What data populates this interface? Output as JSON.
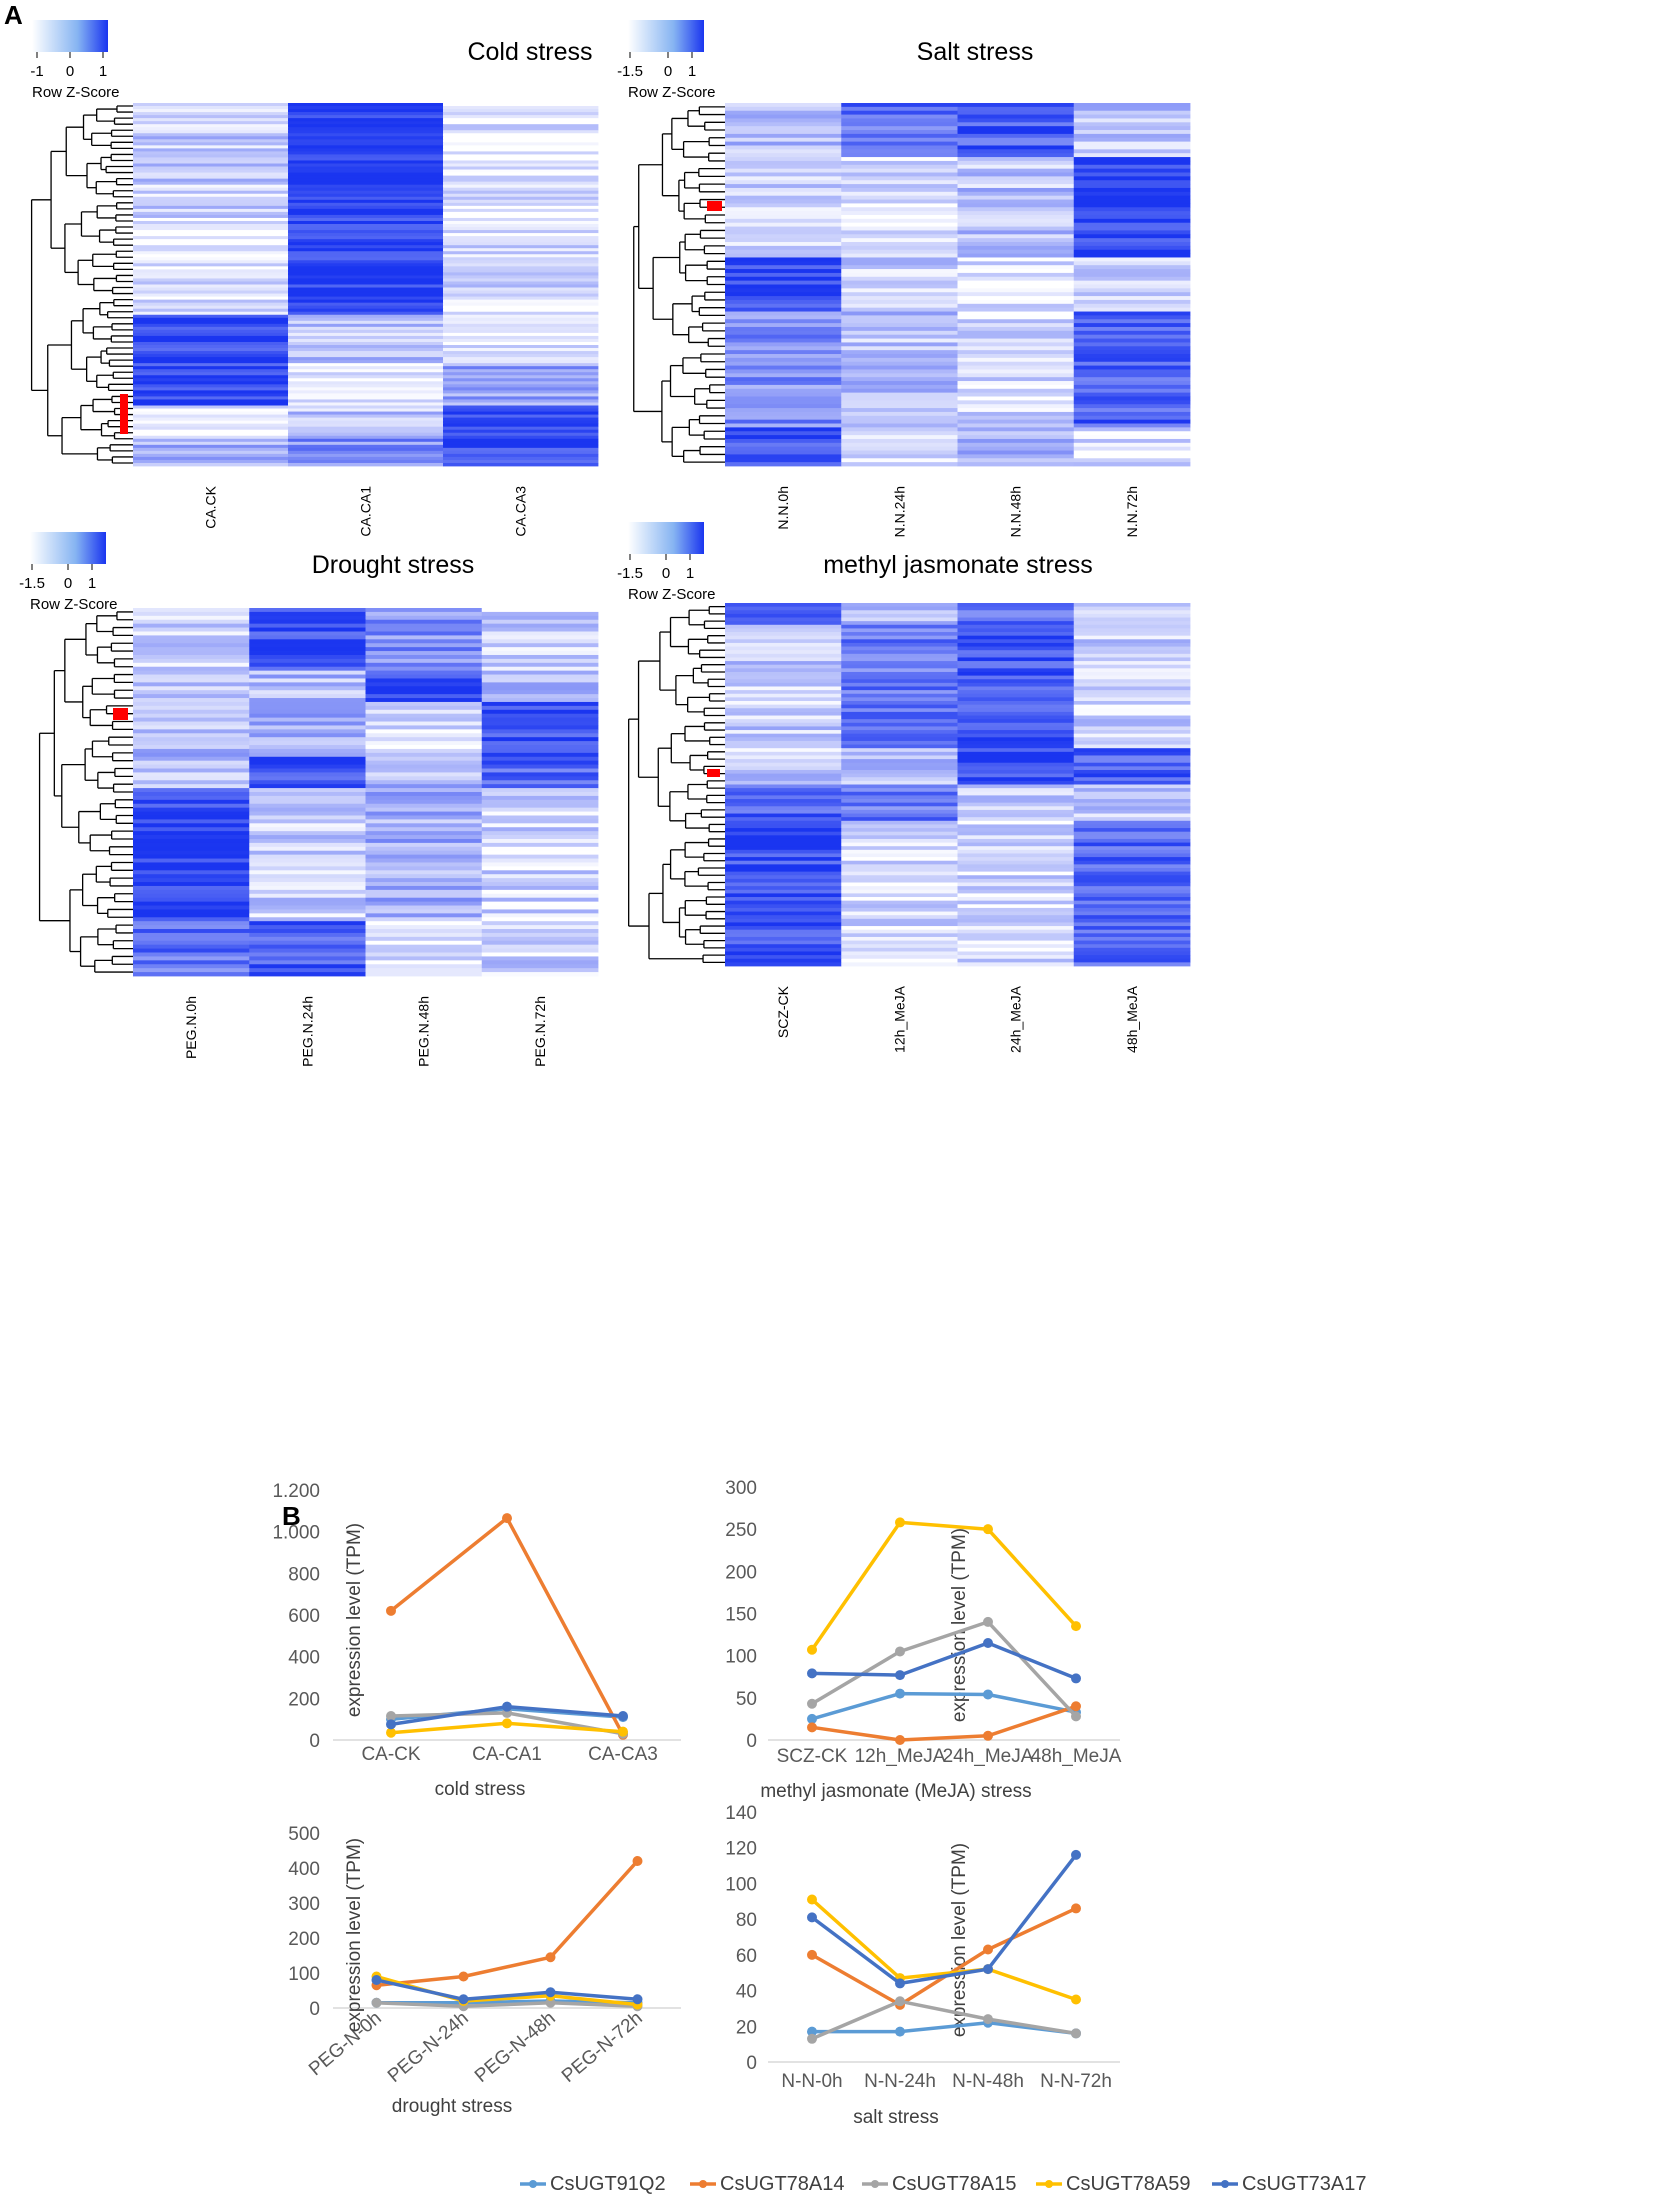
{
  "panel_labels": {
    "a": "A",
    "b": "B"
  },
  "colors": {
    "low": "#ffffff",
    "high": "#1a35f0",
    "dendro": "#000000",
    "highlight": "#ff0000",
    "axis": "#d9d9d9",
    "series": {
      "CsUGT91Q2": "#5b9bd5",
      "CsUGT78A14": "#ed7d31",
      "CsUGT78A15": "#a5a5a5",
      "CsUGT78A59": "#ffc000",
      "CsUGT73A17": "#4472c4"
    }
  },
  "heatmaps": [
    {
      "title": "Cold stress",
      "key_label": "Row Z-Score",
      "key_ticks": [
        "-1",
        "0",
        "1"
      ],
      "columns": [
        "CA.CK",
        "CA.CA1",
        "CA.CA3"
      ],
      "blocks": [
        {
          "rows": 38,
          "levels": [
            0.25,
            0.98,
            0.12
          ]
        },
        {
          "rows": 32,
          "levels": [
            0.12,
            0.95,
            0.18
          ]
        },
        {
          "rows": 16,
          "levels": [
            0.92,
            0.3,
            0.15
          ]
        },
        {
          "rows": 14,
          "levels": [
            0.9,
            0.08,
            0.45
          ]
        },
        {
          "rows": 10,
          "levels": [
            0.1,
            0.28,
            0.95
          ]
        },
        {
          "rows": 10,
          "levels": [
            0.35,
            0.55,
            0.92
          ]
        }
      ]
    },
    {
      "title": "Salt stress",
      "key_label": "Row Z-Score",
      "key_ticks": [
        "-1.5",
        "0",
        "1"
      ],
      "columns": [
        "N.N.0h",
        "N.N.24h",
        "N.N.48h",
        "N.N.72h"
      ],
      "blocks": [
        {
          "rows": 14,
          "levels": [
            0.35,
            0.72,
            0.8,
            0.3
          ]
        },
        {
          "rows": 26,
          "levels": [
            0.22,
            0.15,
            0.3,
            0.92
          ]
        },
        {
          "rows": 14,
          "levels": [
            0.92,
            0.22,
            0.12,
            0.25
          ]
        },
        {
          "rows": 30,
          "levels": [
            0.55,
            0.3,
            0.18,
            0.8
          ]
        },
        {
          "rows": 10,
          "levels": [
            0.88,
            0.18,
            0.35,
            0.15
          ]
        }
      ]
    },
    {
      "title": "Drought stress",
      "key_label": "Row Z-Score",
      "key_ticks": [
        "-1.5",
        "0",
        "1"
      ],
      "columns": [
        "PEG.N.0h",
        "PEG.N.24h",
        "PEG.N.48h",
        "PEG.N.72h"
      ],
      "blocks": [
        {
          "rows": 16,
          "levels": [
            0.25,
            0.88,
            0.55,
            0.22
          ]
        },
        {
          "rows": 8,
          "levels": [
            0.3,
            0.35,
            0.9,
            0.3
          ]
        },
        {
          "rows": 14,
          "levels": [
            0.35,
            0.4,
            0.2,
            0.88
          ]
        },
        {
          "rows": 8,
          "levels": [
            0.3,
            0.85,
            0.35,
            0.75
          ]
        },
        {
          "rows": 34,
          "levels": [
            0.93,
            0.25,
            0.4,
            0.2
          ]
        },
        {
          "rows": 14,
          "levels": [
            0.7,
            0.8,
            0.2,
            0.22
          ]
        }
      ]
    },
    {
      "title": "methyl jasmonate stress",
      "key_label": "Row Z-Score",
      "key_ticks": [
        "-1.5",
        "0",
        "1"
      ],
      "columns": [
        "SCZ-CK",
        "12h_MeJA",
        "24h_MeJA",
        "48h_MeJA"
      ],
      "blocks": [
        {
          "rows": 6,
          "levels": [
            0.88,
            0.25,
            0.7,
            0.22
          ]
        },
        {
          "rows": 34,
          "levels": [
            0.25,
            0.65,
            0.85,
            0.22
          ]
        },
        {
          "rows": 10,
          "levels": [
            0.25,
            0.35,
            0.88,
            0.8
          ]
        },
        {
          "rows": 10,
          "levels": [
            0.8,
            0.65,
            0.3,
            0.3
          ]
        },
        {
          "rows": 40,
          "levels": [
            0.88,
            0.18,
            0.18,
            0.75
          ]
        }
      ]
    }
  ],
  "chart_data": [
    {
      "type": "line",
      "xlabel": "cold stress",
      "ylabel": "expression level (TPM)",
      "categories": [
        "CA-CK",
        "CA-CA1",
        "CA-CA3"
      ],
      "ylim": [
        0,
        1200
      ],
      "yticks": [
        0,
        200,
        400,
        600,
        800,
        1000,
        1200
      ],
      "ytick_labels": [
        "0",
        "200",
        "400",
        "600",
        "800",
        "1.000",
        "1.200"
      ],
      "series": [
        {
          "name": "CsUGT91Q2",
          "values": [
            100,
            150,
            110
          ]
        },
        {
          "name": "CsUGT78A14",
          "values": [
            620,
            1065,
            25
          ]
        },
        {
          "name": "CsUGT78A15",
          "values": [
            115,
            130,
            30
          ]
        },
        {
          "name": "CsUGT78A59",
          "values": [
            35,
            80,
            40
          ]
        },
        {
          "name": "CsUGT73A17",
          "values": [
            75,
            160,
            115
          ]
        }
      ]
    },
    {
      "type": "line",
      "xlabel": "methyl jasmonate (MeJA) stress",
      "ylabel": "expression level (TPM)",
      "categories": [
        "SCZ-CK",
        "12h_MeJA",
        "24h_MeJA",
        "48h_MeJA"
      ],
      "ylim": [
        0,
        300
      ],
      "yticks": [
        0,
        50,
        100,
        150,
        200,
        250,
        300
      ],
      "ytick_labels": [
        "0",
        "50",
        "100",
        "150",
        "200",
        "250",
        "300"
      ],
      "series": [
        {
          "name": "CsUGT91Q2",
          "values": [
            25,
            55,
            54,
            33
          ]
        },
        {
          "name": "CsUGT78A14",
          "values": [
            15,
            0,
            5,
            40
          ]
        },
        {
          "name": "CsUGT78A15",
          "values": [
            43,
            105,
            140,
            28
          ]
        },
        {
          "name": "CsUGT78A59",
          "values": [
            107,
            258,
            250,
            135
          ]
        },
        {
          "name": "CsUGT73A17",
          "values": [
            79,
            77,
            115,
            73
          ]
        }
      ]
    },
    {
      "type": "line",
      "xlabel": "drought stress",
      "ylabel": "expression level (TPM)",
      "categories": [
        "PEG-N-0h",
        "PEG-N-24h",
        "PEG-N-48h",
        "PEG-N-72h"
      ],
      "ylim": [
        0,
        500
      ],
      "yticks": [
        0,
        100,
        200,
        300,
        400,
        500
      ],
      "ytick_labels": [
        "0",
        "100",
        "200",
        "300",
        "400",
        "500"
      ],
      "series": [
        {
          "name": "CsUGT91Q2",
          "values": [
            15,
            15,
            20,
            15
          ]
        },
        {
          "name": "CsUGT78A14",
          "values": [
            65,
            90,
            145,
            420
          ]
        },
        {
          "name": "CsUGT78A15",
          "values": [
            15,
            5,
            15,
            5
          ]
        },
        {
          "name": "CsUGT78A59",
          "values": [
            90,
            20,
            35,
            10
          ]
        },
        {
          "name": "CsUGT73A17",
          "values": [
            80,
            25,
            45,
            25
          ]
        }
      ]
    },
    {
      "type": "line",
      "xlabel": "salt stress",
      "ylabel": "expression level (TPM)",
      "categories": [
        "N-N-0h",
        "N-N-24h",
        "N-N-48h",
        "N-N-72h"
      ],
      "ylim": [
        0,
        140
      ],
      "yticks": [
        0,
        20,
        40,
        60,
        80,
        100,
        120,
        140
      ],
      "ytick_labels": [
        "0",
        "20",
        "40",
        "60",
        "80",
        "100",
        "120",
        "140"
      ],
      "series": [
        {
          "name": "CsUGT91Q2",
          "values": [
            17,
            17,
            22,
            16
          ]
        },
        {
          "name": "CsUGT78A14",
          "values": [
            60,
            32,
            63,
            86
          ]
        },
        {
          "name": "CsUGT78A15",
          "values": [
            13,
            34,
            24,
            16
          ]
        },
        {
          "name": "CsUGT78A59",
          "values": [
            91,
            47,
            52,
            35
          ]
        },
        {
          "name": "CsUGT73A17",
          "values": [
            81,
            44,
            52,
            116
          ]
        }
      ]
    }
  ],
  "legend": [
    "CsUGT91Q2",
    "CsUGT78A14",
    "CsUGT78A15",
    "CsUGT78A59",
    "CsUGT73A17"
  ]
}
